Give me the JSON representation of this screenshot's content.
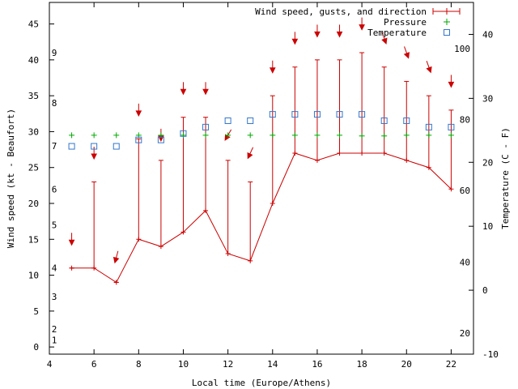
{
  "chart_data": {
    "type": "line",
    "xlabel": "Local time (Europe/Athens)",
    "ylabel": "Wind speed (kt - Beaufort)",
    "y2label": "Temperature (C - F)",
    "xlim": [
      4,
      23
    ],
    "ylim": [
      -1,
      48
    ],
    "y2lim": [
      -10,
      45
    ],
    "grid": false,
    "legend_position": "top-right",
    "x_ticks": [
      4,
      6,
      8,
      10,
      12,
      14,
      16,
      18,
      20,
      22
    ],
    "y_ticks": [
      0,
      5,
      10,
      15,
      20,
      25,
      30,
      35,
      40,
      45
    ],
    "y2_ticks": [
      -10,
      0,
      10,
      20,
      30,
      40
    ],
    "beaufort_labels": [
      {
        "label": "1",
        "kt": 1
      },
      {
        "label": "2",
        "kt": 2.5
      },
      {
        "label": "3",
        "kt": 7
      },
      {
        "label": "4",
        "kt": 11
      },
      {
        "label": "5",
        "kt": 17
      },
      {
        "label": "6",
        "kt": 22
      },
      {
        "label": "7",
        "kt": 28
      },
      {
        "label": "8",
        "kt": 34
      },
      {
        "label": "9",
        "kt": 41
      }
    ],
    "fahrenheit_labels": [
      {
        "label": "20",
        "c": -6.7
      },
      {
        "label": "40",
        "c": 4.4
      },
      {
        "label": "60",
        "c": 15.6
      },
      {
        "label": "80",
        "c": 26.7
      },
      {
        "label": "100",
        "c": 37.8
      }
    ],
    "series": [
      {
        "name": "Wind speed, gusts, and direction",
        "color": "#cc0000",
        "x": [
          5,
          6,
          7,
          8,
          9,
          10,
          11,
          12,
          13,
          14,
          15,
          16,
          17,
          18,
          19,
          20,
          21,
          22
        ],
        "values": [
          11,
          11,
          9,
          15,
          14,
          16,
          19,
          13,
          12,
          20,
          27,
          26,
          27,
          27,
          27,
          26,
          25,
          22
        ],
        "gusts": [
          11,
          23,
          9,
          29,
          26,
          32,
          32,
          26,
          23,
          35,
          39,
          40,
          40,
          41,
          39,
          37,
          35,
          33
        ],
        "arrow_y": [
          15,
          27,
          12.5,
          33,
          29.5,
          36,
          36,
          29.5,
          27,
          39,
          43,
          44,
          44,
          45,
          43,
          41,
          39,
          37
        ],
        "arrow_angle": [
          0,
          0,
          15,
          0,
          0,
          0,
          0,
          30,
          25,
          0,
          0,
          0,
          0,
          0,
          -20,
          -20,
          -20,
          0
        ]
      },
      {
        "name": "Pressure",
        "color": "#00aa00",
        "x": [
          5,
          6,
          7,
          8,
          9,
          10,
          11,
          12,
          13,
          14,
          15,
          16,
          17,
          18,
          19,
          20,
          21,
          22
        ],
        "values": [
          29.5,
          29.5,
          29.5,
          29.5,
          29.5,
          29.5,
          29.5,
          29.5,
          29.5,
          29.5,
          29.5,
          29.5,
          29.5,
          29.4,
          29.4,
          29.5,
          29.5,
          29.5
        ]
      },
      {
        "name": "Temperature",
        "color": "#3377cc",
        "axis": "y2",
        "x": [
          5,
          6,
          7,
          8,
          9,
          10,
          11,
          12,
          13,
          14,
          15,
          16,
          17,
          18,
          19,
          20,
          21,
          22
        ],
        "values": [
          22.5,
          22.5,
          22.5,
          23.5,
          23.5,
          24.5,
          25.5,
          26.5,
          26.5,
          27.5,
          27.5,
          27.5,
          27.5,
          27.5,
          26.5,
          26.5,
          25.5,
          25.5
        ]
      }
    ]
  }
}
